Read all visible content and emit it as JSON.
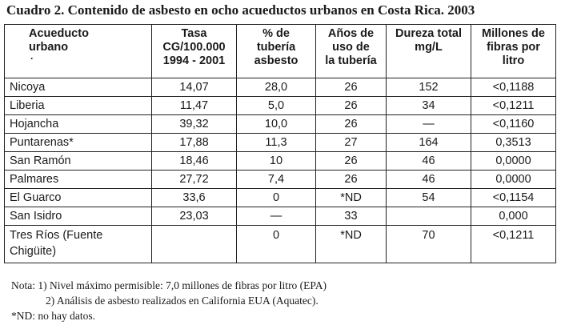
{
  "title": "Cuadro 2.  Contenido de asbesto en ocho acueductos urbanos en Costa Rica. 2003",
  "headers": [
    [
      "Acueducto",
      "urbano"
    ],
    [
      "Tasa",
      "CG/100.000",
      "1994 - 2001"
    ],
    [
      "% de",
      "tubería",
      "asbesto"
    ],
    [
      "Años de",
      "uso de",
      "la tubería"
    ],
    [
      "Dureza total",
      "mg/L"
    ],
    [
      "Millones de",
      "fibras por",
      "litro"
    ]
  ],
  "header_mark": "·",
  "rows": [
    [
      "Nicoya",
      "14,07",
      "28,0",
      "26",
      "152",
      "<0,1188"
    ],
    [
      "Liberia",
      "11,47",
      "5,0",
      "26",
      "34",
      "<0,1211"
    ],
    [
      "Hojancha",
      "39,32",
      "10,0",
      "26",
      "—",
      "<0,1160"
    ],
    [
      "Puntarenas*",
      "17,88",
      "11,3",
      "27",
      "164",
      "0,3513"
    ],
    [
      "San Ramón",
      "18,46",
      "10",
      "26",
      "46",
      "0,0000"
    ],
    [
      "Palmares",
      "27,72",
      "7,4",
      "26",
      "46",
      "0,0000"
    ],
    [
      "El Guarco",
      "33,6",
      "0",
      "*ND",
      "54",
      "<0,1154"
    ],
    [
      "San Isidro",
      "23,03",
      "—",
      "33",
      "",
      "0,000"
    ]
  ],
  "last_row": {
    "name_line1": "Tres Ríos (Fuente",
    "name_line2": "Chigüite)",
    "tasa": "",
    "pct": "0",
    "anos": "*ND",
    "dureza": "70",
    "fibras": "<0,1211"
  },
  "notes": {
    "line1": "Nota: 1) Nivel máximo permisible: 7,0 millones de fibras por litro (EPA)",
    "line2": "2) Análisis de asbesto realizados en California EUA (Aquatec).",
    "line3": "*ND: no hay datos."
  }
}
